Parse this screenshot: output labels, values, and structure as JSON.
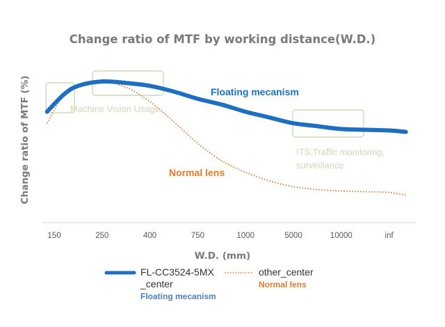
{
  "chart_data": {
    "type": "line",
    "title": "Change ratio of MTF by working distance(W.D.)",
    "xlabel": "W.D. (mm)",
    "ylabel": "Change ratio of MTF (%)",
    "categories": [
      "150",
      "250",
      "400",
      "750",
      "1000",
      "5000",
      "10000",
      "inf"
    ],
    "ylim": [
      0,
      100
    ],
    "grid": false,
    "series": [
      {
        "name": "FL-CC3524-5MX _center",
        "name_lines": [
          "FL-CC3524-5MX",
          "_center"
        ],
        "tag": "Floating mecanism",
        "line_label": "Floating mecanism",
        "style": "solid",
        "color": "#1f6fc0",
        "x": [
          -0.15,
          0.2,
          0.5,
          1.0,
          1.5,
          2.0,
          2.5,
          3.0,
          3.5,
          4.0,
          4.5,
          5.0,
          5.5,
          6.0,
          6.5,
          7.0,
          7.35
        ],
        "values": [
          77,
          89,
          95,
          98,
          97,
          95,
          91,
          86,
          82,
          77,
          73,
          69,
          67,
          65,
          64.5,
          64,
          63
        ]
      },
      {
        "name": "other_center",
        "name_lines": [
          "other_center"
        ],
        "tag": "Normal lens",
        "line_label": "Normal lens",
        "style": "dotted",
        "color": "#e07b2c",
        "x": [
          -0.15,
          0.2,
          0.5,
          1.0,
          1.5,
          2.0,
          2.5,
          3.0,
          3.5,
          4.0,
          4.5,
          5.0,
          5.5,
          6.0,
          6.5,
          7.0,
          7.35
        ],
        "values": [
          69,
          89,
          95,
          98,
          94,
          84,
          70,
          55,
          43,
          35,
          29,
          25,
          23,
          22,
          21.5,
          21,
          19
        ]
      }
    ],
    "annotations": [
      {
        "text": "Machine Vision Usage",
        "lines": [
          "Machine Vision Usage"
        ],
        "color": "#c8dcb6"
      },
      {
        "text": "ITS,Traffic monitoring, surveillance",
        "lines": [
          "ITS,Traffic monitoring,",
          "surveillance"
        ],
        "color": "#c8dcb6"
      }
    ],
    "legend": "bottom"
  }
}
